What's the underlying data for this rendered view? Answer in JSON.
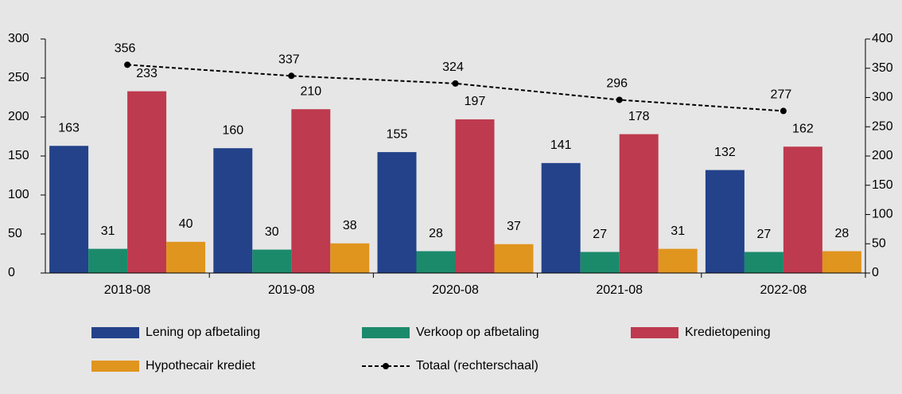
{
  "chart_data": {
    "type": "bar",
    "categories": [
      "2018-08",
      "2019-08",
      "2020-08",
      "2021-08",
      "2022-08"
    ],
    "series": [
      {
        "name": "Lening op afbetaling",
        "color": "#23428a",
        "values": [
          163,
          160,
          155,
          141,
          132
        ]
      },
      {
        "name": "Verkoop op afbetaling",
        "color": "#1b8a6b",
        "values": [
          31,
          30,
          28,
          27,
          27
        ]
      },
      {
        "name": "Kredietopening",
        "color": "#be3a4e",
        "values": [
          233,
          210,
          197,
          178,
          162
        ]
      },
      {
        "name": "Hypothecair krediet",
        "color": "#e0951e",
        "values": [
          40,
          38,
          37,
          31,
          28
        ]
      },
      {
        "name": "Totaal (rechterschaal)",
        "color": "#000000",
        "type": "line",
        "axis": "y2",
        "values": [
          356,
          337,
          324,
          296,
          277
        ]
      }
    ],
    "ylim": [
      0,
      300
    ],
    "yticks": [
      0,
      50,
      100,
      150,
      200,
      250,
      300
    ],
    "y2lim": [
      0,
      400
    ],
    "y2ticks": [
      0,
      50,
      100,
      150,
      200,
      250,
      300,
      350,
      400
    ]
  }
}
